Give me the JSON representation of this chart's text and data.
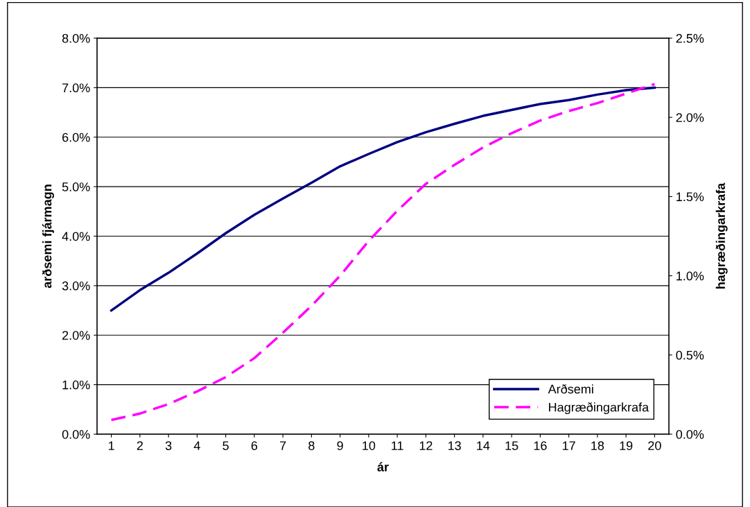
{
  "chart_data": {
    "type": "line",
    "xlabel": "ár",
    "ylabel": "arðsemi fjármagn",
    "y2label": "hagræðingarkrafa",
    "categories": [
      "1",
      "2",
      "3",
      "4",
      "5",
      "6",
      "7",
      "8",
      "9",
      "10",
      "11",
      "12",
      "13",
      "14",
      "15",
      "16",
      "17",
      "18",
      "19",
      "20"
    ],
    "series": [
      {
        "name": "Arðsemi",
        "color": "#000080",
        "line_style": "solid",
        "values": [
          2.5,
          2.91,
          3.26,
          3.65,
          4.06,
          4.43,
          4.76,
          5.08,
          5.41,
          5.66,
          5.9,
          6.1,
          6.27,
          6.43,
          6.55,
          6.67,
          6.75,
          6.86,
          6.95,
          7.0
        ]
      },
      {
        "name": "Hagræðingarkrafa",
        "color": "#ff00ff",
        "line_style": "dashed",
        "axis": "y2",
        "values": [
          0.09,
          0.13,
          0.19,
          0.27,
          0.36,
          0.48,
          0.64,
          0.81,
          1.0,
          1.22,
          1.41,
          1.58,
          1.7,
          1.81,
          1.9,
          1.98,
          2.04,
          2.09,
          2.15,
          2.21
        ]
      }
    ],
    "ylim": [
      0,
      8
    ],
    "yticks": [
      {
        "value": 0,
        "label": "0.0%"
      },
      {
        "value": 1,
        "label": "1.0%"
      },
      {
        "value": 2,
        "label": "2.0%"
      },
      {
        "value": 3,
        "label": "3.0%"
      },
      {
        "value": 4,
        "label": "4.0%"
      },
      {
        "value": 5,
        "label": "5.0%"
      },
      {
        "value": 6,
        "label": "6.0%"
      },
      {
        "value": 7,
        "label": "7.0%"
      },
      {
        "value": 8,
        "label": "8.0%"
      }
    ],
    "y2lim": [
      0,
      2.5
    ],
    "y2ticks": [
      {
        "value": 0,
        "label": "0.0%"
      },
      {
        "value": 0.5,
        "label": "0.5%"
      },
      {
        "value": 1,
        "label": "1.0%"
      },
      {
        "value": 1.5,
        "label": "1.5%"
      },
      {
        "value": 2,
        "label": "2.0%"
      },
      {
        "value": 2.5,
        "label": "2.5%"
      }
    ],
    "grid": "y",
    "legend": "bottom right",
    "marker": "none"
  }
}
